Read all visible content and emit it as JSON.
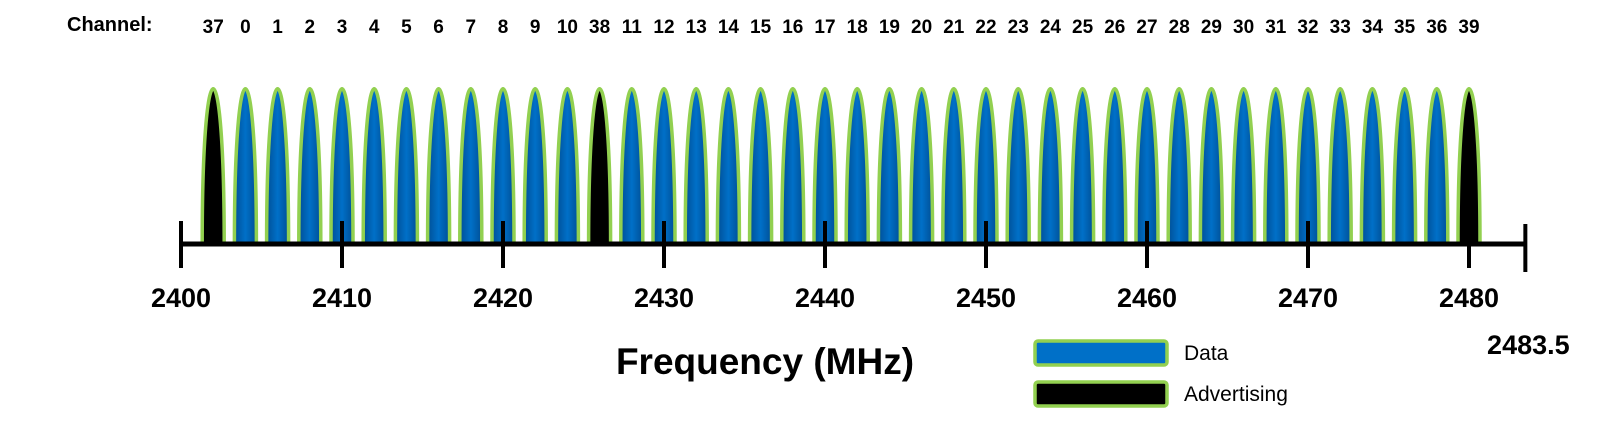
{
  "chart_data": {
    "type": "spectrum",
    "channel_title": "Channel:",
    "channels": [
      {
        "ch": "37",
        "freq": 2402,
        "kind": "advertising"
      },
      {
        "ch": "0",
        "freq": 2404,
        "kind": "data"
      },
      {
        "ch": "1",
        "freq": 2406,
        "kind": "data"
      },
      {
        "ch": "2",
        "freq": 2408,
        "kind": "data"
      },
      {
        "ch": "3",
        "freq": 2410,
        "kind": "data"
      },
      {
        "ch": "4",
        "freq": 2412,
        "kind": "data"
      },
      {
        "ch": "5",
        "freq": 2414,
        "kind": "data"
      },
      {
        "ch": "6",
        "freq": 2416,
        "kind": "data"
      },
      {
        "ch": "7",
        "freq": 2418,
        "kind": "data"
      },
      {
        "ch": "8",
        "freq": 2420,
        "kind": "data"
      },
      {
        "ch": "9",
        "freq": 2422,
        "kind": "data"
      },
      {
        "ch": "10",
        "freq": 2424,
        "kind": "data"
      },
      {
        "ch": "38",
        "freq": 2426,
        "kind": "advertising"
      },
      {
        "ch": "11",
        "freq": 2428,
        "kind": "data"
      },
      {
        "ch": "12",
        "freq": 2430,
        "kind": "data"
      },
      {
        "ch": "13",
        "freq": 2432,
        "kind": "data"
      },
      {
        "ch": "14",
        "freq": 2434,
        "kind": "data"
      },
      {
        "ch": "15",
        "freq": 2436,
        "kind": "data"
      },
      {
        "ch": "16",
        "freq": 2438,
        "kind": "data"
      },
      {
        "ch": "17",
        "freq": 2440,
        "kind": "data"
      },
      {
        "ch": "18",
        "freq": 2442,
        "kind": "data"
      },
      {
        "ch": "19",
        "freq": 2444,
        "kind": "data"
      },
      {
        "ch": "20",
        "freq": 2446,
        "kind": "data"
      },
      {
        "ch": "21",
        "freq": 2448,
        "kind": "data"
      },
      {
        "ch": "22",
        "freq": 2450,
        "kind": "data"
      },
      {
        "ch": "23",
        "freq": 2452,
        "kind": "data"
      },
      {
        "ch": "24",
        "freq": 2454,
        "kind": "data"
      },
      {
        "ch": "25",
        "freq": 2456,
        "kind": "data"
      },
      {
        "ch": "26",
        "freq": 2458,
        "kind": "data"
      },
      {
        "ch": "27",
        "freq": 2460,
        "kind": "data"
      },
      {
        "ch": "28",
        "freq": 2462,
        "kind": "data"
      },
      {
        "ch": "29",
        "freq": 2464,
        "kind": "data"
      },
      {
        "ch": "30",
        "freq": 2466,
        "kind": "data"
      },
      {
        "ch": "31",
        "freq": 2468,
        "kind": "data"
      },
      {
        "ch": "32",
        "freq": 2470,
        "kind": "data"
      },
      {
        "ch": "33",
        "freq": 2472,
        "kind": "data"
      },
      {
        "ch": "34",
        "freq": 2474,
        "kind": "data"
      },
      {
        "ch": "35",
        "freq": 2476,
        "kind": "data"
      },
      {
        "ch": "36",
        "freq": 2478,
        "kind": "data"
      },
      {
        "ch": "39",
        "freq": 2480,
        "kind": "advertising"
      }
    ],
    "x_ticks": [
      {
        "value": 2400,
        "label": "2400"
      },
      {
        "value": 2410,
        "label": "2410"
      },
      {
        "value": 2420,
        "label": "2420"
      },
      {
        "value": 2430,
        "label": "2430"
      },
      {
        "value": 2440,
        "label": "2440"
      },
      {
        "value": 2450,
        "label": "2450"
      },
      {
        "value": 2460,
        "label": "2460"
      },
      {
        "value": 2470,
        "label": "2470"
      },
      {
        "value": 2480,
        "label": "2480"
      },
      {
        "value": 2483.5,
        "label": "2483.5"
      }
    ],
    "xlim": [
      2400,
      2483.5
    ],
    "xlabel": "Frequency (MHz)",
    "legend": [
      {
        "label": "Data",
        "kind": "data"
      },
      {
        "label": "Advertising",
        "kind": "advertising"
      }
    ],
    "legend_position": "bottom-right",
    "colors": {
      "data_fill": "#0070c8",
      "data_fill_dark": "#004f96",
      "advertising_fill": "#000000",
      "outline": "#92d050",
      "axis": "#000000"
    }
  }
}
